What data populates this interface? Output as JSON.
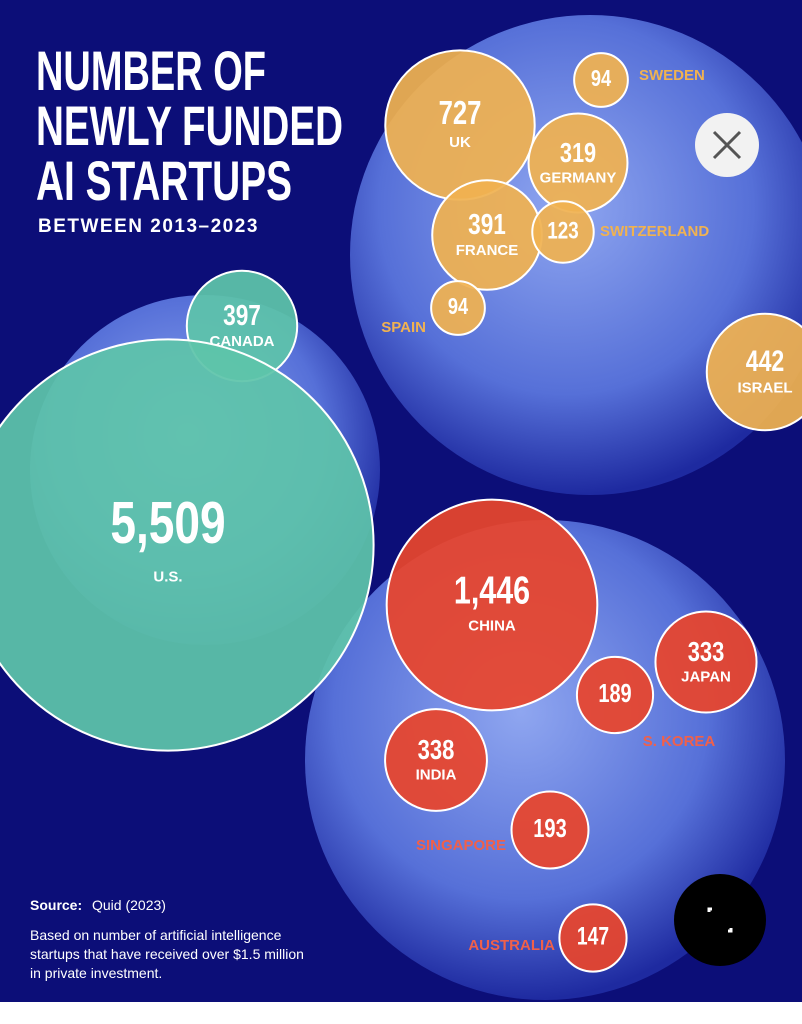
{
  "chart_data": {
    "type": "bubble",
    "title_lines": [
      "NUMBER OF",
      "NEWLY FUNDED",
      "AI STARTUPS"
    ],
    "subtitle": "BETWEEN 2013–2023",
    "categories": [
      "UK",
      "SWEDEN",
      "GERMANY",
      "FRANCE",
      "SWITZERLAND",
      "SPAIN",
      "ISRAEL",
      "CANADA",
      "U.S.",
      "CHINA",
      "JAPAN",
      "S. KOREA",
      "INDIA",
      "SINGAPORE",
      "AUSTRALIA"
    ],
    "values": [
      727,
      94,
      319,
      391,
      123,
      94,
      442,
      397,
      5509,
      1446,
      333,
      189,
      338,
      193,
      147
    ],
    "value_labels": [
      "727",
      "94",
      "319",
      "391",
      "123",
      "94",
      "442",
      "397",
      "5,509",
      "1,446",
      "333",
      "189",
      "338",
      "193",
      "147"
    ],
    "colors": [
      "#f0b251",
      "#f0b251",
      "#f0b251",
      "#f0b251",
      "#f0b251",
      "#f0b251",
      "#f0b251",
      "#5ec4aa",
      "#5ec4aa",
      "#e8452c",
      "#e8452c",
      "#e8452c",
      "#e8452c",
      "#e8452c",
      "#e8452c"
    ],
    "source_label": "Source:",
    "source": "Quid (2023)",
    "note_lines": [
      "Based on number of artificial intelligence",
      "startups that have received over $1.5 million",
      "in private investment."
    ]
  }
}
